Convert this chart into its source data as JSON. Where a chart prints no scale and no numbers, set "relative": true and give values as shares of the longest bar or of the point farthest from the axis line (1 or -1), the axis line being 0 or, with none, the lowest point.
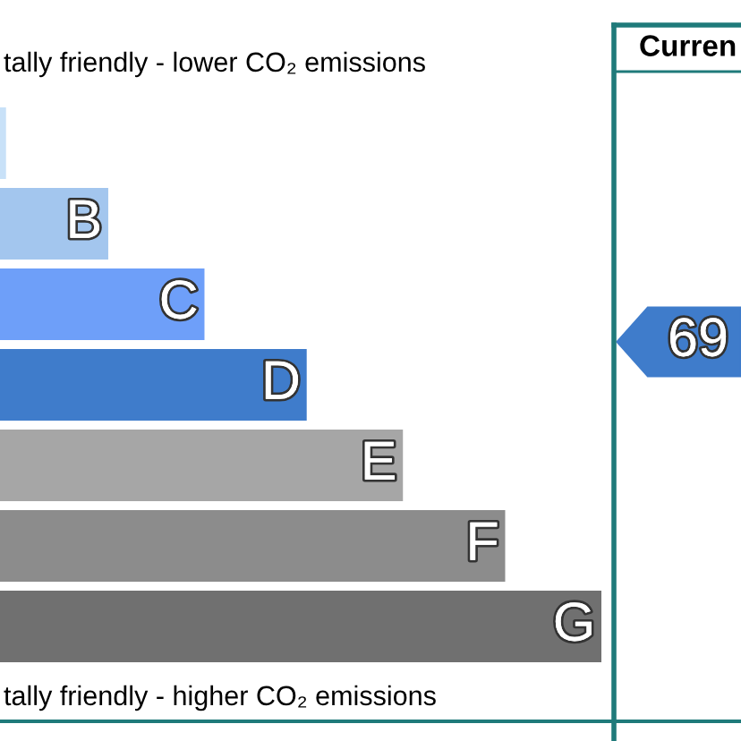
{
  "chart_data": {
    "type": "bar",
    "orientation": "horizontal",
    "relative": true,
    "categories": [
      null,
      "B",
      "C",
      "D",
      "E",
      "F",
      "G"
    ],
    "values": [
      0.01,
      0.18,
      0.34,
      0.51,
      0.67,
      0.84,
      1
    ],
    "colors": [
      "#c8e1f8",
      "#a3c6ee",
      "#6e9ff9",
      "#3f7ccb",
      "#a6a6a6",
      "#8c8c8c",
      "#707070"
    ],
    "annotations": [
      "tally friendly - lower CO₂ emissions",
      "tally friendly - higher CO₂ emissions",
      "Curren",
      "69"
    ]
  }
}
